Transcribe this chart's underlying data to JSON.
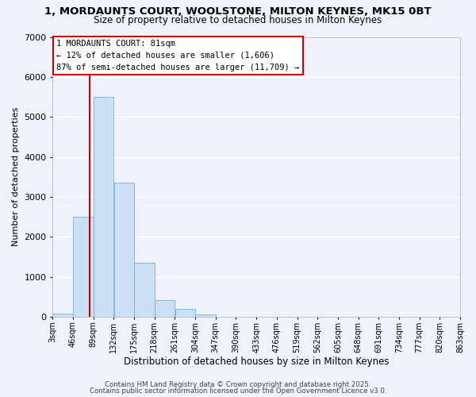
{
  "title": "1, MORDAUNTS COURT, WOOLSTONE, MILTON KEYNES, MK15 0BT",
  "subtitle": "Size of property relative to detached houses in Milton Keynes",
  "xlabel": "Distribution of detached houses by size in Milton Keynes",
  "ylabel": "Number of detached properties",
  "bar_left_edges": [
    3,
    46,
    89,
    132,
    175,
    218,
    261,
    304,
    347,
    390,
    433,
    476,
    519,
    562,
    605,
    648,
    691,
    734,
    777,
    820
  ],
  "bar_heights": [
    75,
    2500,
    5500,
    3350,
    1350,
    420,
    190,
    55,
    5,
    0,
    0,
    0,
    0,
    0,
    0,
    0,
    0,
    0,
    0,
    0
  ],
  "bin_width": 43,
  "bar_color": "#cce0f5",
  "bar_edge_color": "#7aafd4",
  "vline_x": 81,
  "vline_color": "#cc0000",
  "annotation_title": "1 MORDAUNTS COURT: 81sqm",
  "annotation_line1": "← 12% of detached houses are smaller (1,606)",
  "annotation_line2": "87% of semi-detached houses are larger (11,709) →",
  "annotation_box_color": "#ffffff",
  "annotation_box_edge": "#cc0000",
  "yticks": [
    0,
    1000,
    2000,
    3000,
    4000,
    5000,
    6000,
    7000
  ],
  "xtick_labels": [
    "3sqm",
    "46sqm",
    "89sqm",
    "132sqm",
    "175sqm",
    "218sqm",
    "261sqm",
    "304sqm",
    "347sqm",
    "390sqm",
    "433sqm",
    "476sqm",
    "519sqm",
    "562sqm",
    "605sqm",
    "648sqm",
    "691sqm",
    "734sqm",
    "777sqm",
    "820sqm",
    "863sqm"
  ],
  "xtick_positions": [
    3,
    46,
    89,
    132,
    175,
    218,
    261,
    304,
    347,
    390,
    433,
    476,
    519,
    562,
    605,
    648,
    691,
    734,
    777,
    820,
    863
  ],
  "xlim": [
    3,
    863
  ],
  "ylim": [
    0,
    7000
  ],
  "bg_color": "#eef2fa",
  "grid_color": "#ffffff",
  "footer1": "Contains HM Land Registry data © Crown copyright and database right 2025.",
  "footer2": "Contains public sector information licensed under the Open Government Licence v3.0."
}
